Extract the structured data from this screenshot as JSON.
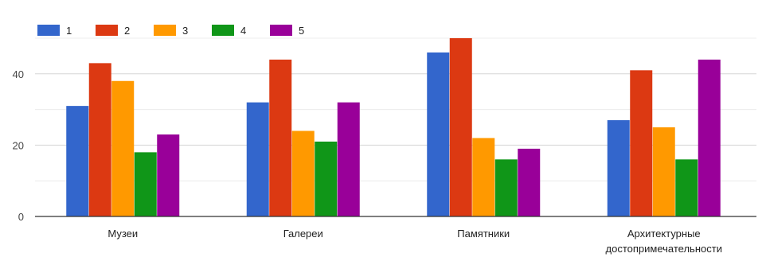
{
  "chart_data": {
    "type": "bar",
    "categories": [
      [
        "Музеи"
      ],
      [
        "Галереи"
      ],
      [
        "Памятники"
      ],
      [
        "Архитектурные",
        "достопримечательности"
      ]
    ],
    "series": [
      {
        "name": "1",
        "color": "#3366cc",
        "values": [
          31,
          32,
          46,
          27
        ]
      },
      {
        "name": "2",
        "color": "#dc3912",
        "values": [
          43,
          44,
          50,
          41
        ]
      },
      {
        "name": "3",
        "color": "#ff9900",
        "values": [
          38,
          24,
          22,
          25
        ]
      },
      {
        "name": "4",
        "color": "#109618",
        "values": [
          18,
          21,
          16,
          16
        ]
      },
      {
        "name": "5",
        "color": "#990099",
        "values": [
          23,
          32,
          19,
          44
        ]
      }
    ],
    "title": "",
    "xlabel": "",
    "ylabel": "",
    "ylim": [
      0,
      50
    ],
    "yticks": [
      0,
      20,
      40
    ],
    "grid": true,
    "legend_position": "top-left",
    "gridline_color": "#dddddd",
    "axis_color": "#333333"
  }
}
